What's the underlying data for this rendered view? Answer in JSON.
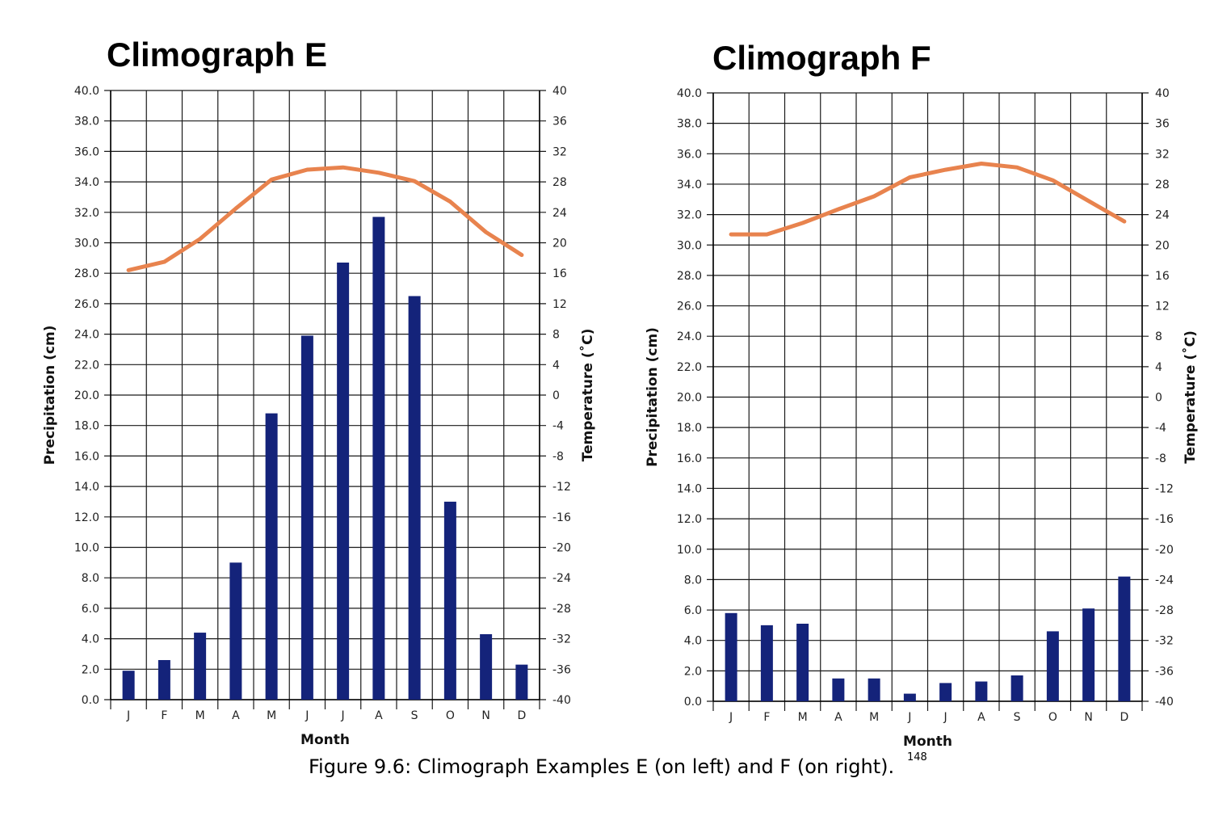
{
  "caption": {
    "text": "Figure 9.6: Climograph Examples E (on left) and F (on right).",
    "superscript": "148"
  },
  "colors": {
    "bar": "#14237A",
    "line": "#E8834E",
    "grid": "#1a1a1a"
  },
  "chart_data": [
    {
      "type": "bar+line",
      "title": "Climograph E",
      "xlabel": "Month",
      "ylabel": "Precipitation (cm)",
      "y2label": "Temperature (˚C)",
      "categories": [
        "J",
        "F",
        "M",
        "A",
        "M",
        "J",
        "J",
        "A",
        "S",
        "O",
        "N",
        "D"
      ],
      "ylim": [
        0,
        40
      ],
      "y2lim": [
        -40,
        40
      ],
      "yticks": [
        "0.0",
        "2.0",
        "4.0",
        "6.0",
        "8.0",
        "10.0",
        "12.0",
        "14.0",
        "16.0",
        "18.0",
        "20.0",
        "22.0",
        "24.0",
        "26.0",
        "28.0",
        "30.0",
        "32.0",
        "34.0",
        "36.0",
        "38.0",
        "40.0"
      ],
      "y2ticks": [
        "-40",
        "-36",
        "-32",
        "-28",
        "-24",
        "-20",
        "-16",
        "-12",
        "-8",
        "-4",
        "0",
        "4",
        "8",
        "12",
        "16",
        "20",
        "24",
        "28",
        "32",
        "36",
        "40"
      ],
      "series": [
        {
          "kind": "bar",
          "values": [
            1.9,
            2.6,
            4.4,
            9.0,
            18.8,
            23.9,
            28.7,
            31.7,
            26.5,
            13.0,
            4.3,
            2.3
          ]
        },
        {
          "kind": "line",
          "values": [
            16.4,
            17.5,
            20.5,
            24.5,
            28.3,
            29.6,
            29.9,
            29.2,
            28.1,
            25.4,
            21.4,
            18.4
          ]
        }
      ]
    },
    {
      "type": "bar+line",
      "title": "Climograph F",
      "xlabel": "Month",
      "ylabel": "Precipitation (cm)",
      "y2label": "Temperature (˚C)",
      "categories": [
        "J",
        "F",
        "M",
        "A",
        "M",
        "J",
        "J",
        "A",
        "S",
        "O",
        "N",
        "D"
      ],
      "ylim": [
        0,
        40
      ],
      "y2lim": [
        -40,
        40
      ],
      "yticks": [
        "0.0",
        "2.0",
        "4.0",
        "6.0",
        "8.0",
        "10.0",
        "12.0",
        "14.0",
        "16.0",
        "18.0",
        "20.0",
        "22.0",
        "24.0",
        "26.0",
        "28.0",
        "30.0",
        "32.0",
        "34.0",
        "36.0",
        "38.0",
        "40.0"
      ],
      "y2ticks": [
        "-40",
        "-36",
        "-32",
        "-28",
        "-24",
        "-20",
        "-16",
        "-12",
        "-8",
        "-4",
        "0",
        "4",
        "8",
        "12",
        "16",
        "20",
        "24",
        "28",
        "32",
        "36",
        "40"
      ],
      "series": [
        {
          "kind": "bar",
          "values": [
            5.8,
            5.0,
            5.1,
            1.5,
            1.5,
            0.5,
            1.2,
            1.3,
            1.7,
            4.6,
            6.1,
            8.2
          ]
        },
        {
          "kind": "line",
          "values": [
            21.4,
            21.4,
            22.9,
            24.7,
            26.4,
            28.9,
            29.9,
            30.7,
            30.2,
            28.5,
            25.8,
            23.1
          ]
        }
      ]
    }
  ]
}
